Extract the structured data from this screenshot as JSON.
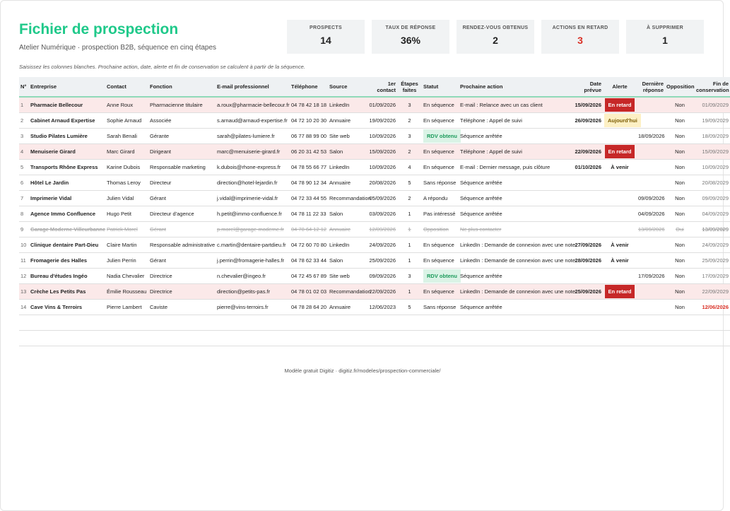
{
  "header": {
    "title": "Fichier de prospection",
    "subtitle": "Atelier Numérique · prospection B2B, séquence en cinq étapes"
  },
  "kpis": [
    {
      "label": "PROSPECTS",
      "value": "14"
    },
    {
      "label": "TAUX DE RÉPONSE",
      "value": "36%"
    },
    {
      "label": "RENDEZ-VOUS OBTENUS",
      "value": "2"
    },
    {
      "label": "ACTIONS EN RETARD",
      "value": "3",
      "color": "#d93025"
    },
    {
      "label": "À SUPPRIMER",
      "value": "1"
    }
  ],
  "note": "Saisissez les colonnes blanches. Prochaine action, date, alerte et fin de conservation se calculent à partir de la séquence.",
  "table": {
    "columns": [
      {
        "key": "num",
        "label": "N°"
      },
      {
        "key": "company",
        "label": "Entreprise"
      },
      {
        "key": "contact",
        "label": "Contact"
      },
      {
        "key": "role",
        "label": "Fonction"
      },
      {
        "key": "email",
        "label": "E-mail professionnel"
      },
      {
        "key": "phone",
        "label": "Téléphone"
      },
      {
        "key": "source",
        "label": "Source"
      },
      {
        "key": "first",
        "label": "1er contact"
      },
      {
        "key": "steps",
        "label": "Étapes faites"
      },
      {
        "key": "status",
        "label": "Statut"
      },
      {
        "key": "next",
        "label": "Prochaine action"
      },
      {
        "key": "due",
        "label": "Date prévue"
      },
      {
        "key": "alert",
        "label": "Alerte"
      },
      {
        "key": "last",
        "label": "Dernière réponse"
      },
      {
        "key": "opposition",
        "label": "Opposition"
      },
      {
        "key": "retention",
        "label": "Fin de conservation"
      }
    ],
    "rows": [
      {
        "num": 1,
        "company": "Pharmacie Bellecour",
        "contact": "Anne Roux",
        "role": "Pharmacienne titulaire",
        "email": "a.roux@pharmacie-bellecour.fr",
        "phone": "04 78 42 18 18",
        "source": "LinkedIn",
        "first": "01/09/2026",
        "steps": 3,
        "status": "En séquence",
        "next": "E-mail : Relance avec un cas client",
        "due": "15/09/2026",
        "alert": "En retard",
        "opposition": "Non",
        "retention": "01/09/2029"
      },
      {
        "num": 2,
        "company": "Cabinet Arnaud Expertise",
        "contact": "Sophie Arnaud",
        "role": "Associée",
        "email": "s.arnaud@arnaud-expertise.fr",
        "phone": "04 72 10 20 30",
        "source": "Annuaire",
        "first": "19/09/2026",
        "steps": 2,
        "status": "En séquence",
        "next": "Téléphone : Appel de suivi",
        "due": "26/09/2026",
        "alert": "Aujourd'hui",
        "opposition": "Non",
        "retention": "19/09/2029"
      },
      {
        "num": 3,
        "company": "Studio Pilates Lumière",
        "contact": "Sarah Benali",
        "role": "Gérante",
        "email": "sarah@pilates-lumiere.fr",
        "phone": "06 77 88 99 00",
        "source": "Site web",
        "first": "10/09/2026",
        "steps": 3,
        "status": "RDV obtenu",
        "next": "Séquence arrêtée",
        "last": "18/09/2026",
        "opposition": "Non",
        "retention": "18/09/2029"
      },
      {
        "num": 4,
        "company": "Menuiserie Girard",
        "contact": "Marc Girard",
        "role": "Dirigeant",
        "email": "marc@menuiserie-girard.fr",
        "phone": "06 20 31 42 53",
        "source": "Salon",
        "first": "15/09/2026",
        "steps": 2,
        "status": "En séquence",
        "next": "Téléphone : Appel de suivi",
        "due": "22/09/2026",
        "alert": "En retard",
        "opposition": "Non",
        "retention": "15/09/2029"
      },
      {
        "num": 5,
        "company": "Transports Rhône Express",
        "contact": "Karine Dubois",
        "role": "Responsable marketing",
        "email": "k.dubois@rhone-express.fr",
        "phone": "04 78 55 66 77",
        "source": "LinkedIn",
        "first": "10/09/2026",
        "steps": 4,
        "status": "En séquence",
        "next": "E-mail : Dernier message, puis clôture",
        "due": "01/10/2026",
        "alert": "À venir",
        "opposition": "Non",
        "retention": "10/09/2029"
      },
      {
        "num": 6,
        "company": "Hôtel Le Jardin",
        "contact": "Thomas Leroy",
        "role": "Directeur",
        "email": "direction@hotel-lejardin.fr",
        "phone": "04 78 90 12 34",
        "source": "Annuaire",
        "first": "20/08/2026",
        "steps": 5,
        "status": "Sans réponse",
        "next": "Séquence arrêtée",
        "opposition": "Non",
        "retention": "20/08/2029"
      },
      {
        "num": 7,
        "company": "Imprimerie Vidal",
        "contact": "Julien Vidal",
        "role": "Gérant",
        "email": "j.vidal@imprimerie-vidal.fr",
        "phone": "04 72 33 44 55",
        "source": "Recommandation",
        "first": "05/09/2026",
        "steps": 2,
        "status": "A répondu",
        "next": "Séquence arrêtée",
        "last": "09/09/2026",
        "opposition": "Non",
        "retention": "09/09/2029"
      },
      {
        "num": 8,
        "company": "Agence Immo Confluence",
        "contact": "Hugo Petit",
        "role": "Directeur d'agence",
        "email": "h.petit@immo-confluence.fr",
        "phone": "04 78 11 22 33",
        "source": "Salon",
        "first": "03/09/2026",
        "steps": 1,
        "status": "Pas intéressé",
        "next": "Séquence arrêtée",
        "last": "04/09/2026",
        "opposition": "Non",
        "retention": "04/09/2029"
      },
      {
        "num": 9,
        "company": "Garage Moderne Villeurbanne",
        "contact": "Patrick Morel",
        "role": "Gérant",
        "email": "p.morel@garage-moderne.fr",
        "phone": "04 78 64 12 12",
        "source": "Annuaire",
        "first": "12/09/2026",
        "steps": 1,
        "status": "Opposition",
        "next": "Ne plus contacter",
        "last": "13/09/2026",
        "opposition": "Oui",
        "retention": "13/09/2029"
      },
      {
        "num": 10,
        "company": "Clinique dentaire Part-Dieu",
        "contact": "Claire Martin",
        "role": "Responsable administrative",
        "email": "c.martin@dentaire-partdieu.fr",
        "phone": "04 72 60 70 80",
        "source": "LinkedIn",
        "first": "24/09/2026",
        "steps": 1,
        "status": "En séquence",
        "next": "LinkedIn : Demande de connexion avec une note",
        "due": "27/09/2026",
        "alert": "À venir",
        "opposition": "Non",
        "retention": "24/09/2029"
      },
      {
        "num": 11,
        "company": "Fromagerie des Halles",
        "contact": "Julien Perrin",
        "role": "Gérant",
        "email": "j.perrin@fromagerie-halles.fr",
        "phone": "04 78 62 33 44",
        "source": "Salon",
        "first": "25/09/2026",
        "steps": 1,
        "status": "En séquence",
        "next": "LinkedIn : Demande de connexion avec une note",
        "due": "28/09/2026",
        "alert": "À venir",
        "opposition": "Non",
        "retention": "25/09/2029"
      },
      {
        "num": 12,
        "company": "Bureau d'études Ingéo",
        "contact": "Nadia Chevalier",
        "role": "Directrice",
        "email": "n.chevalier@ingeo.fr",
        "phone": "04 72 45 67 89",
        "source": "Site web",
        "first": "09/09/2026",
        "steps": 3,
        "status": "RDV obtenu",
        "next": "Séquence arrêtée",
        "last": "17/09/2026",
        "opposition": "Non",
        "retention": "17/09/2029"
      },
      {
        "num": 13,
        "company": "Crèche Les Petits Pas",
        "contact": "Émilie Rousseau",
        "role": "Directrice",
        "email": "direction@petits-pas.fr",
        "phone": "04 78 01 02 03",
        "source": "Recommandation",
        "first": "22/09/2026",
        "steps": 1,
        "status": "En séquence",
        "next": "LinkedIn : Demande de connexion avec une note",
        "due": "25/09/2026",
        "alert": "En retard",
        "opposition": "Non",
        "retention": "22/09/2029"
      },
      {
        "num": 14,
        "company": "Cave Vins & Terroirs",
        "contact": "Pierre Lambert",
        "role": "Caviste",
        "email": "pierre@vins-terroirs.fr",
        "phone": "04 78 28 64 20",
        "source": "Annuaire",
        "first": "12/06/2023",
        "steps": 5,
        "status": "Sans réponse",
        "next": "Séquence arrêtée",
        "opposition": "Non",
        "retention": "12/06/2026",
        "retention_color": "#d93025"
      }
    ]
  },
  "footer": "Modèle gratuit Digitiz · digitiz.fr/modeles/prospection-commerciale/"
}
